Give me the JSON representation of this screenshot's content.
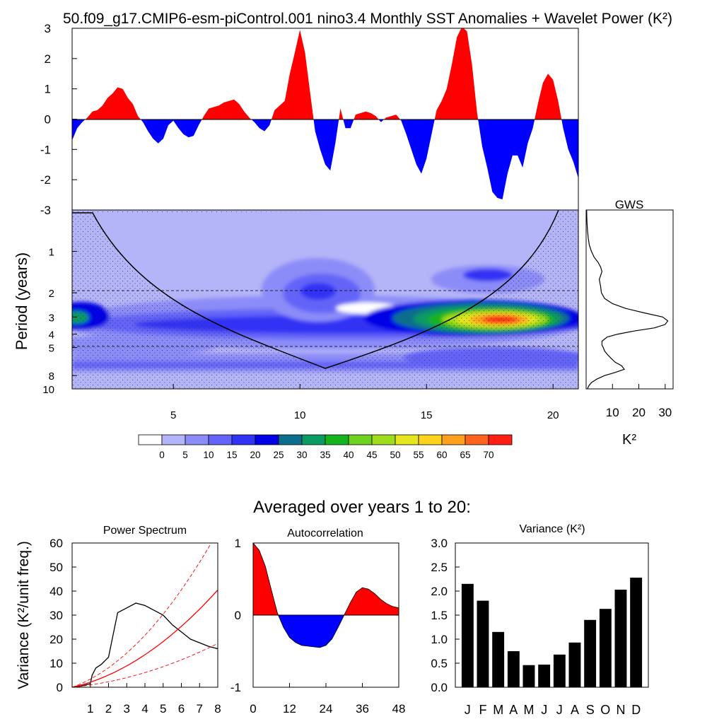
{
  "title": "50.f09_g17.CMIP6-esm-piControl.001 nino3.4 Monthly SST Anomalies + Wavelet Power (K²)",
  "subtitle": "Averaged over years 1 to 20:",
  "chart_data": [
    {
      "id": "anomaly",
      "type": "area",
      "xlabel": "",
      "ylabel": "",
      "xlim": [
        1,
        21
      ],
      "ylim": [
        -3,
        3
      ],
      "yticks": [
        "3",
        "2",
        "1",
        "0",
        "-1",
        "-2",
        "-3"
      ],
      "colors": {
        "positive": "#ff0000",
        "negative": "#0000ff"
      },
      "x": [
        1.0,
        1.2,
        1.4,
        1.6,
        1.8,
        2.0,
        2.2,
        2.4,
        2.6,
        2.8,
        3.0,
        3.2,
        3.4,
        3.6,
        3.8,
        4.0,
        4.2,
        4.4,
        4.6,
        4.8,
        5.0,
        5.2,
        5.4,
        5.6,
        5.8,
        6.0,
        6.2,
        6.4,
        6.6,
        6.8,
        7.0,
        7.2,
        7.4,
        7.6,
        7.8,
        8.0,
        8.2,
        8.4,
        8.6,
        8.8,
        9.0,
        9.2,
        9.4,
        9.6,
        9.8,
        10.0,
        10.2,
        10.4,
        10.6,
        10.8,
        11.0,
        11.2,
        11.4,
        11.6,
        11.8,
        12.0,
        12.2,
        12.4,
        12.6,
        12.8,
        13.0,
        13.2,
        13.4,
        13.6,
        13.8,
        14.0,
        14.2,
        14.4,
        14.6,
        14.8,
        15.0,
        15.2,
        15.4,
        15.6,
        15.8,
        16.0,
        16.2,
        16.4,
        16.6,
        16.8,
        17.0,
        17.2,
        17.4,
        17.6,
        17.8,
        18.0,
        18.2,
        18.4,
        18.6,
        18.8,
        19.0,
        19.2,
        19.4,
        19.6,
        19.8,
        20.0,
        20.2,
        20.4,
        20.6,
        20.8,
        21.0
      ],
      "values": [
        -0.7,
        -0.3,
        -0.1,
        0.05,
        0.25,
        0.3,
        0.45,
        0.7,
        0.85,
        1.05,
        1.0,
        0.7,
        0.5,
        0.1,
        -0.1,
        -0.4,
        -0.65,
        -0.8,
        -0.65,
        -0.2,
        -0.05,
        -0.3,
        -0.5,
        -0.6,
        -0.55,
        -0.2,
        0.1,
        0.35,
        0.4,
        0.45,
        0.55,
        0.6,
        0.65,
        0.5,
        0.25,
        0.05,
        -0.1,
        -0.3,
        -0.4,
        -0.2,
        0.3,
        0.45,
        0.6,
        1.5,
        2.2,
        2.95,
        2.2,
        0.9,
        -0.4,
        -1.0,
        -1.5,
        -1.7,
        -0.8,
        0.35,
        -0.3,
        -0.3,
        0.15,
        0.2,
        0.25,
        0.2,
        0.1,
        -0.1,
        0.05,
        0.1,
        0.15,
        -0.05,
        -0.5,
        -1.0,
        -1.5,
        -1.8,
        -1.3,
        -0.5,
        0.3,
        0.6,
        1.0,
        1.8,
        2.7,
        3.05,
        2.9,
        1.8,
        0.2,
        -0.9,
        -1.6,
        -2.4,
        -2.6,
        -2.65,
        -1.8,
        -1.2,
        -1.2,
        -1.6,
        -0.8,
        -0.3,
        0.5,
        1.2,
        1.5,
        1.3,
        0.6,
        -0.3,
        -1.0,
        -1.4,
        -1.95
      ]
    },
    {
      "id": "wavelet",
      "type": "heatmap",
      "ylabel": "Period (years)",
      "xlim": [
        1,
        21
      ],
      "ylim": [
        0.5,
        10
      ],
      "xticks": [
        5,
        10,
        15,
        20
      ],
      "yticks": [
        1,
        2,
        3,
        4,
        5,
        8,
        10
      ],
      "dashed_periods": [
        2,
        5
      ],
      "colorbar_labels": [
        "0",
        "5",
        "10",
        "15",
        "20",
        "25",
        "30",
        "35",
        "40",
        "45",
        "50",
        "55",
        "60",
        "65",
        "70"
      ],
      "colorbar_colors": [
        "#ffffff",
        "#b4b4f8",
        "#8c8cf8",
        "#6464f8",
        "#3232f4",
        "#0000e6",
        "#0a6e8c",
        "#0a9a64",
        "#14b41e",
        "#6ed21e",
        "#a0dc1e",
        "#e6e61e",
        "#ffd21e",
        "#ffa01e",
        "#ff641e",
        "#ff1e14"
      ]
    },
    {
      "id": "gws",
      "type": "line",
      "title": "GWS",
      "xlabel": "K²",
      "xlim": [
        0,
        33
      ],
      "xticks": [
        10,
        20,
        30
      ],
      "periods": [
        0.5,
        0.6,
        0.7,
        0.8,
        0.9,
        1.0,
        1.1,
        1.2,
        1.3,
        1.4,
        1.5,
        1.6,
        1.8,
        2.0,
        2.2,
        2.4,
        2.6,
        2.8,
        3.0,
        3.2,
        3.4,
        3.6,
        3.8,
        4.0,
        4.2,
        4.5,
        4.8,
        5.0,
        5.3,
        5.6,
        6.0,
        6.4,
        6.8,
        7.2,
        7.6,
        8.0,
        8.5,
        9.0,
        9.5,
        10.0
      ],
      "power": [
        0.2,
        0.3,
        0.5,
        0.8,
        1.2,
        2.0,
        3.0,
        4.5,
        5.5,
        6.0,
        5.5,
        5.0,
        5.5,
        5.8,
        7.0,
        10.0,
        15.0,
        22.0,
        29.0,
        31.0,
        30.0,
        26.0,
        18.0,
        12.0,
        8.0,
        6.0,
        6.0,
        6.5,
        7.0,
        8.0,
        9.5,
        11.0,
        13.5,
        14.5,
        11.0,
        7.0,
        4.0,
        2.0,
        1.0,
        0.5
      ]
    },
    {
      "id": "power_spectrum",
      "type": "line",
      "title": "Power Spectrum",
      "ylabel": "Variance (K²/unit freq.)",
      "xlim": [
        0,
        8
      ],
      "ylim": [
        0,
        60
      ],
      "xticks": [
        1,
        2,
        3,
        4,
        5,
        6,
        7,
        8
      ],
      "yticks": [
        0,
        10,
        20,
        30,
        40,
        50,
        60
      ],
      "series": [
        {
          "name": "spectrum",
          "color": "#000000",
          "x": [
            0.0,
            0.5,
            1.0,
            1.1,
            1.3,
            1.6,
            2.0,
            2.2,
            2.5,
            3.0,
            3.5,
            4.0,
            4.5,
            5.0,
            5.5,
            6.0,
            6.5,
            7.0,
            7.5,
            8.0
          ],
          "y": [
            0,
            0.5,
            1.5,
            5,
            8,
            9.5,
            12.5,
            20,
            31,
            33,
            35,
            34,
            32,
            30,
            26,
            23,
            20,
            18.5,
            17,
            16
          ]
        },
        {
          "name": "red noise",
          "color": "#ff0000",
          "style": "solid",
          "scale": 1.0
        },
        {
          "name": "upper bound",
          "color": "#ff0000",
          "style": "dashed",
          "scale": 1.6
        },
        {
          "name": "lower bound",
          "color": "#ff0000",
          "style": "dashed",
          "scale": 0.45
        }
      ]
    },
    {
      "id": "autocorrelation",
      "type": "area",
      "title": "Autocorrelation",
      "xlim": [
        0,
        48
      ],
      "ylim": [
        -1,
        1
      ],
      "xticks": [
        0,
        12,
        24,
        36,
        48
      ],
      "yticks": [
        1,
        0,
        -1
      ],
      "x": [
        0,
        2,
        4,
        6,
        8,
        10,
        12,
        14,
        16,
        18,
        20,
        22,
        24,
        26,
        28,
        30,
        32,
        34,
        36,
        38,
        40,
        42,
        44,
        46,
        48
      ],
      "values": [
        1.0,
        0.9,
        0.68,
        0.35,
        0.03,
        -0.17,
        -0.31,
        -0.38,
        -0.42,
        -0.43,
        -0.44,
        -0.45,
        -0.42,
        -0.33,
        -0.17,
        0.0,
        0.17,
        0.32,
        0.38,
        0.36,
        0.3,
        0.22,
        0.16,
        0.12,
        0.1
      ]
    },
    {
      "id": "variance",
      "type": "bar",
      "title": "Variance (K²)",
      "categories": [
        "J",
        "F",
        "M",
        "A",
        "M",
        "J",
        "J",
        "A",
        "S",
        "O",
        "N",
        "D"
      ],
      "values": [
        2.15,
        1.8,
        1.15,
        0.75,
        0.46,
        0.47,
        0.68,
        0.93,
        1.4,
        1.63,
        2.03,
        2.28
      ],
      "ylim": [
        0,
        3
      ],
      "yticks": [
        "0.0",
        "0.5",
        "1.0",
        "1.5",
        "2.0",
        "2.5",
        "3.0"
      ]
    }
  ]
}
